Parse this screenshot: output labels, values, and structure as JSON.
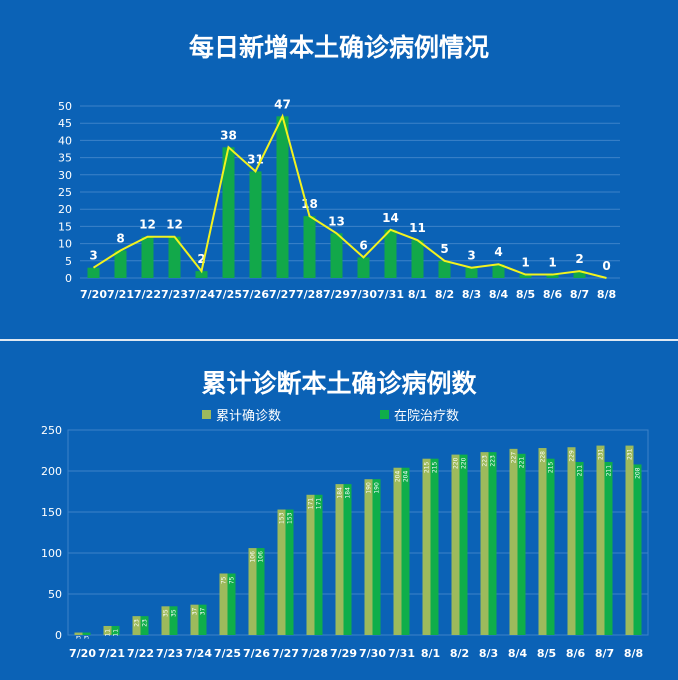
{
  "chart_data": [
    {
      "type": "bar+line",
      "title": "每日新增本土确诊病例情况",
      "categories": [
        "7/20",
        "7/21",
        "7/22",
        "7/23",
        "7/24",
        "7/25",
        "7/26",
        "7/27",
        "7/28",
        "7/29",
        "7/30",
        "7/31",
        "8/1",
        "8/2",
        "8/3",
        "8/4",
        "8/5",
        "8/6",
        "8/7",
        "8/8"
      ],
      "values": [
        3,
        8,
        12,
        12,
        2,
        38,
        31,
        47,
        18,
        13,
        6,
        14,
        11,
        5,
        3,
        4,
        1,
        1,
        2,
        0
      ],
      "ylim": [
        0,
        50
      ],
      "yticks": [
        0,
        5,
        10,
        15,
        20,
        25,
        30,
        35,
        40,
        45,
        50
      ],
      "grid": true,
      "colors": {
        "bar": "#12a84a",
        "line": "#f2f21e"
      }
    },
    {
      "type": "bar",
      "title": "累计诊断本土确诊病例数",
      "categories": [
        "7/20",
        "7/21",
        "7/22",
        "7/23",
        "7/24",
        "7/25",
        "7/26",
        "7/27",
        "7/28",
        "7/29",
        "7/30",
        "7/31",
        "8/1",
        "8/2",
        "8/3",
        "8/4",
        "8/5",
        "8/6",
        "8/7",
        "8/8"
      ],
      "series": [
        {
          "name": "累计确诊数",
          "color": "#9dba5c",
          "values": [
            3,
            11,
            23,
            35,
            37,
            75,
            106,
            153,
            171,
            184,
            190,
            204,
            215,
            220,
            223,
            227,
            228,
            229,
            231,
            231
          ]
        },
        {
          "name": "在院治疗数",
          "color": "#0fae4a",
          "values": [
            3,
            11,
            23,
            35,
            37,
            75,
            106,
            153,
            171,
            184,
            190,
            204,
            215,
            220,
            223,
            221,
            215,
            211,
            211,
            208
          ]
        }
      ],
      "ylim": [
        0,
        250
      ],
      "yticks": [
        0,
        50,
        100,
        150,
        200,
        250
      ],
      "grid": true,
      "legend": "top"
    }
  ]
}
